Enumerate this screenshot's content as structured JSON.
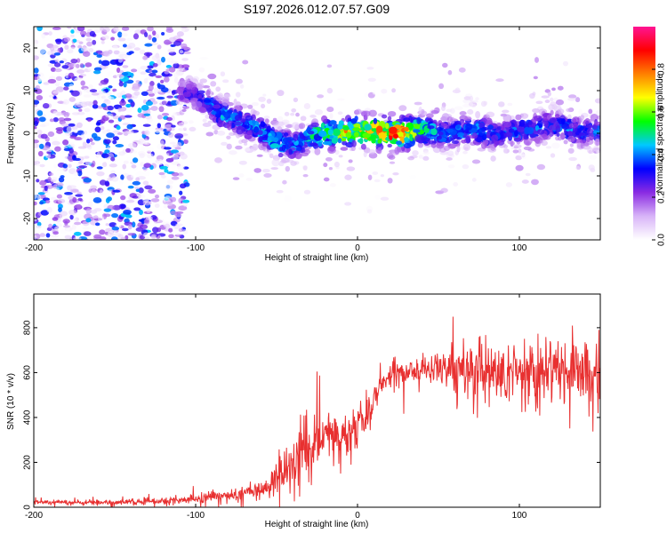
{
  "chart_data": [
    {
      "type": "heatmap",
      "title": "S197.2026.012.07.57.G09",
      "xlabel": "Height of straight line (km)",
      "ylabel": "Frequency (Hz)",
      "xlim": [
        -200,
        150
      ],
      "ylim": [
        -25,
        25
      ],
      "x_ticks": [
        -200,
        -100,
        0,
        100
      ],
      "y_ticks": [
        -20,
        -10,
        0,
        10,
        20
      ],
      "colorbar": {
        "label": "Normalized spectral amplitude",
        "range": [
          0,
          1
        ],
        "ticks": [
          "0.0",
          "0.2",
          "0.4",
          "0.6",
          "0.8"
        ],
        "tick_values": [
          0,
          0.2,
          0.4,
          0.6,
          0.8
        ],
        "colors": [
          "#ffffff",
          "#d8b4f8",
          "#8a2be2",
          "#0000ff",
          "#00c8ff",
          "#00ff00",
          "#ffff00",
          "#ff8000",
          "#ff0000",
          "#ff1493"
        ]
      },
      "ridge": {
        "x": [
          -110,
          -100,
          -90,
          -80,
          -70,
          -60,
          -50,
          -40,
          -30,
          -20,
          -10,
          0,
          10,
          20,
          30,
          40,
          50,
          60,
          70,
          80,
          90,
          100,
          110,
          120,
          130,
          140,
          150
        ],
        "freq": [
          10,
          9,
          6,
          4,
          2.5,
          0.5,
          -2,
          -3,
          -1,
          0,
          0,
          0.5,
          0.5,
          0,
          0,
          1,
          0,
          0,
          1,
          0,
          0,
          0.5,
          1,
          2,
          1,
          0,
          1
        ],
        "amplitude": [
          0.3,
          0.35,
          0.45,
          0.5,
          0.45,
          0.5,
          0.55,
          0.45,
          0.5,
          0.7,
          0.8,
          0.85,
          0.9,
          0.95,
          0.9,
          0.6,
          0.5,
          0.45,
          0.5,
          0.45,
          0.4,
          0.45,
          0.45,
          0.4,
          0.45,
          0.4,
          0.45
        ]
      }
    },
    {
      "type": "line",
      "xlabel": "Height of straight line (km)",
      "ylabel": "SNR (10 * v/v)",
      "xlim": [
        -200,
        150
      ],
      "ylim": [
        0,
        950
      ],
      "x_ticks": [
        -200,
        -100,
        0,
        100
      ],
      "y_ticks": [
        0,
        200,
        400,
        600,
        800
      ],
      "color": "#e83030",
      "envelope": {
        "x": [
          -200,
          -150,
          -110,
          -90,
          -70,
          -55,
          -45,
          -35,
          -25,
          -15,
          -5,
          5,
          15,
          25,
          35,
          45,
          55,
          65,
          75,
          85,
          100,
          120,
          150
        ],
        "mean": [
          22,
          22,
          30,
          45,
          60,
          90,
          170,
          250,
          300,
          320,
          330,
          420,
          560,
          610,
          600,
          620,
          620,
          620,
          600,
          600,
          600,
          600,
          600
        ],
        "spread": [
          10,
          12,
          18,
          25,
          35,
          60,
          110,
          160,
          140,
          120,
          120,
          90,
          70,
          60,
          70,
          90,
          120,
          150,
          160,
          160,
          160,
          160,
          150
        ]
      }
    }
  ]
}
